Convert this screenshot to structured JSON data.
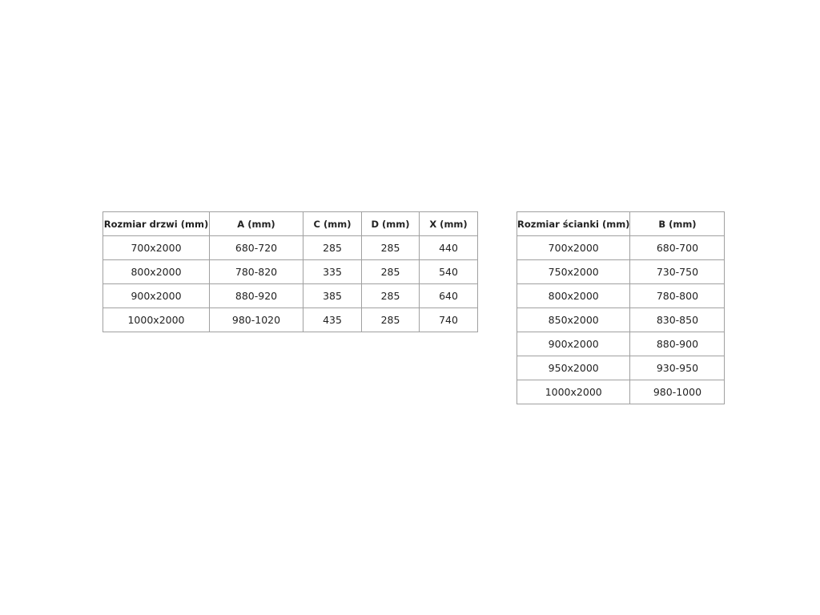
{
  "tables": [
    {
      "header": [
        "Rozmiar drzwi (mm)",
        "A (mm)",
        "C (mm)",
        "D (mm)",
        "X (mm)"
      ],
      "rows": [
        [
          "700x2000",
          "680-720",
          "285",
          "285",
          "440"
        ],
        [
          "800x2000",
          "780-820",
          "335",
          "285",
          "540"
        ],
        [
          "900x2000",
          "880-920",
          "385",
          "285",
          "640"
        ],
        [
          "1000x2000",
          "980-1020",
          "435",
          "285",
          "740"
        ]
      ]
    },
    {
      "header": [
        "Rozmiar ścianki (mm)",
        "B (mm)"
      ],
      "rows": [
        [
          "700x2000",
          "680-700"
        ],
        [
          "750x2000",
          "730-750"
        ],
        [
          "800x2000",
          "780-800"
        ],
        [
          "850x2000",
          "830-850"
        ],
        [
          "900x2000",
          "880-900"
        ],
        [
          "950x2000",
          "930-950"
        ],
        [
          "1000x2000",
          "980-1000"
        ]
      ]
    }
  ]
}
